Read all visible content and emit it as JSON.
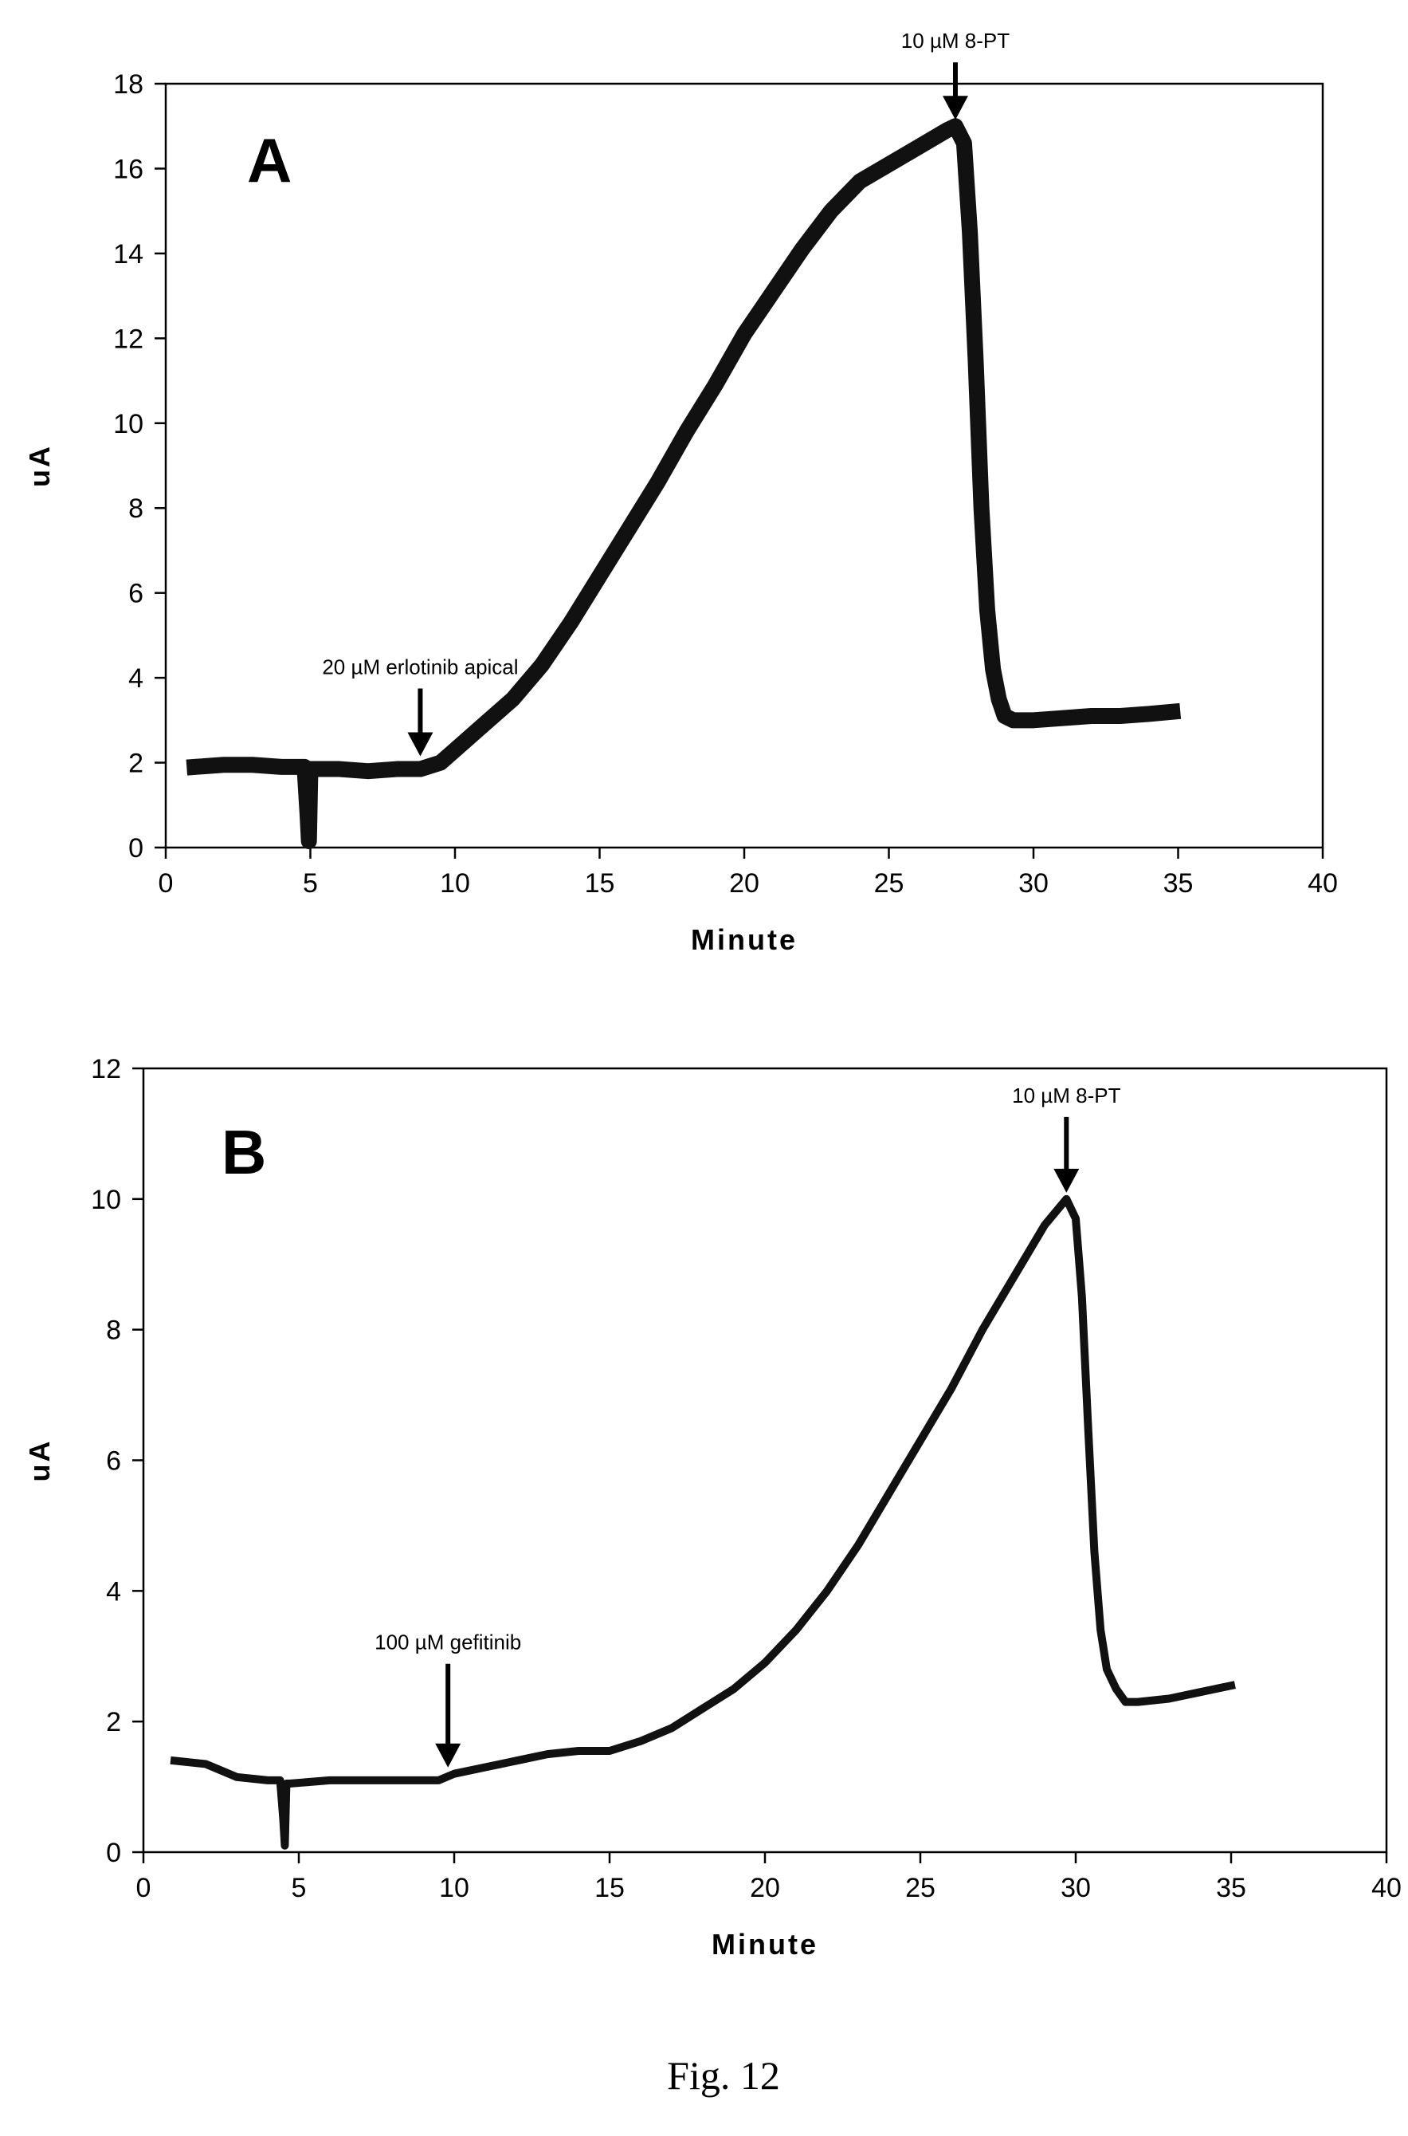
{
  "figure_caption": "Fig. 12",
  "chart_data": [
    {
      "type": "line",
      "panel_label": "A",
      "xlabel": "Minute",
      "ylabel": "uA",
      "xlim": [
        0,
        40
      ],
      "ylim": [
        0,
        18
      ],
      "xticks": [
        0,
        5,
        10,
        15,
        20,
        25,
        30,
        35,
        40
      ],
      "yticks": [
        0,
        2,
        4,
        6,
        8,
        10,
        12,
        14,
        16,
        18
      ],
      "grid": false,
      "series": [
        {
          "x": [
            1,
            2,
            3,
            4,
            4.8,
            4.9,
            4.95,
            5.0,
            5.1,
            6,
            7,
            8,
            8.8,
            9.5,
            10,
            11,
            12,
            13,
            14,
            15,
            16,
            17,
            18,
            19,
            20,
            21,
            22,
            23,
            24,
            25,
            26,
            27,
            27.3,
            27.6,
            27.8,
            28,
            28.2,
            28.4,
            28.6,
            28.8,
            29,
            29.3,
            29.6,
            30,
            31,
            32,
            33,
            34,
            34.8
          ],
          "y": [
            1.9,
            1.95,
            1.95,
            1.9,
            1.9,
            0.8,
            0.15,
            1.85,
            1.85,
            1.85,
            1.8,
            1.85,
            1.85,
            2.0,
            2.3,
            2.9,
            3.5,
            4.3,
            5.3,
            6.4,
            7.5,
            8.6,
            9.8,
            10.9,
            12.1,
            13.1,
            14.1,
            15.0,
            15.7,
            16.1,
            16.5,
            16.9,
            17.0,
            16.6,
            14.5,
            11.5,
            8.0,
            5.6,
            4.2,
            3.5,
            3.1,
            3.0,
            3.0,
            3.0,
            3.05,
            3.1,
            3.1,
            3.15,
            3.2
          ]
        }
      ],
      "annotations": [
        {
          "text": "20 µM erlotinib apical",
          "x": 8.8,
          "y": 2.0
        },
        {
          "text": "10 µM 8-PT",
          "x": 27.3,
          "y": 17.0
        }
      ]
    },
    {
      "type": "line",
      "panel_label": "B",
      "xlabel": "Minute",
      "ylabel": "uA",
      "xlim": [
        0,
        40
      ],
      "ylim": [
        0,
        12
      ],
      "xticks": [
        0,
        5,
        10,
        15,
        20,
        25,
        30,
        35,
        40
      ],
      "yticks": [
        0,
        2,
        4,
        6,
        8,
        10,
        12
      ],
      "grid": false,
      "series": [
        {
          "x": [
            1,
            2,
            3,
            4,
            4.4,
            4.5,
            4.55,
            4.6,
            4.7,
            6,
            8,
            9.5,
            10,
            11,
            12,
            13,
            14,
            15,
            16,
            17,
            18,
            19,
            20,
            21,
            22,
            23,
            24,
            25,
            26,
            27,
            28,
            29,
            29.7,
            30,
            30.2,
            30.4,
            30.6,
            30.8,
            31,
            31.3,
            31.6,
            32,
            33,
            34,
            35
          ],
          "y": [
            1.4,
            1.35,
            1.15,
            1.1,
            1.1,
            0.5,
            0.1,
            1.05,
            1.05,
            1.1,
            1.1,
            1.1,
            1.2,
            1.3,
            1.4,
            1.5,
            1.55,
            1.55,
            1.7,
            1.9,
            2.2,
            2.5,
            2.9,
            3.4,
            4.0,
            4.7,
            5.5,
            6.3,
            7.1,
            8.0,
            8.8,
            9.6,
            10.0,
            9.7,
            8.5,
            6.5,
            4.6,
            3.4,
            2.8,
            2.5,
            2.3,
            2.3,
            2.35,
            2.45,
            2.55
          ]
        }
      ],
      "annotations": [
        {
          "text": "100 µM gefitinib",
          "x": 9.8,
          "y": 1.2
        },
        {
          "text": "10 µM 8-PT",
          "x": 29.7,
          "y": 10.0
        }
      ]
    }
  ]
}
